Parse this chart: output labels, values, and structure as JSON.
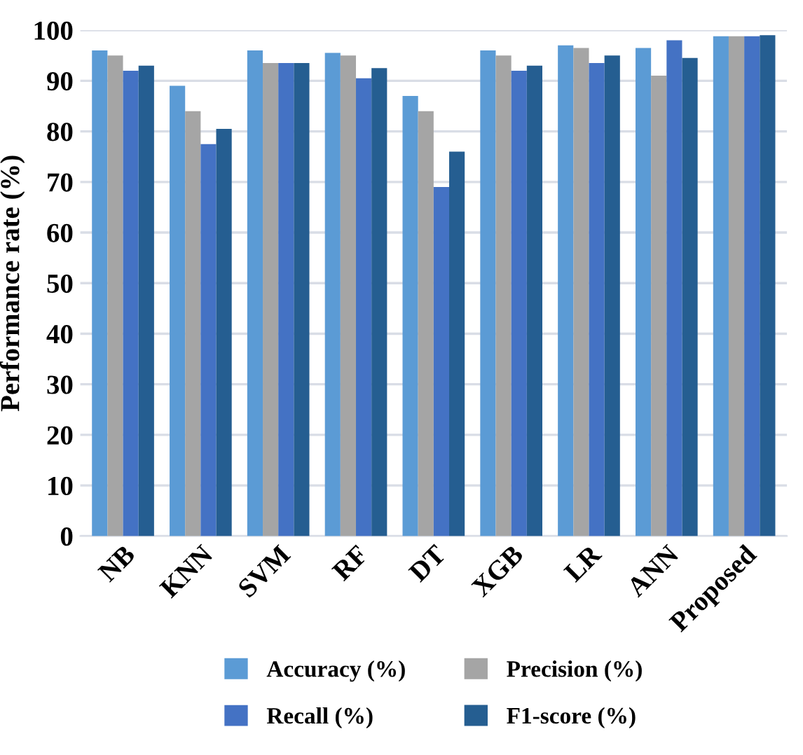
{
  "chart_data": {
    "type": "bar",
    "ylabel": "Performance rate (%)",
    "categories": [
      "NB",
      "KNN",
      "SVM",
      "RF",
      "DT",
      "XGB",
      "LR",
      "ANN",
      "Proposed"
    ],
    "series": [
      {
        "name": "Accuracy (%)",
        "color": "#5b9bd5",
        "values": [
          96,
          89,
          96,
          95.5,
          87,
          96,
          97,
          96.5,
          98.8
        ]
      },
      {
        "name": "Precision (%)",
        "color": "#a5a5a5",
        "values": [
          95,
          84,
          93.5,
          95,
          84,
          95,
          96.5,
          91,
          98.8
        ]
      },
      {
        "name": "Recall (%)",
        "color": "#4472c4",
        "values": [
          92,
          77.5,
          93.5,
          90.5,
          69,
          92,
          93.5,
          98,
          98.8
        ]
      },
      {
        "name": "F1-score (%)",
        "color": "#255e91",
        "values": [
          93,
          80.5,
          93.5,
          92.5,
          76,
          93,
          95,
          94.5,
          99
        ]
      }
    ],
    "ylim": [
      0,
      100
    ],
    "yticks": [
      0,
      10,
      20,
      30,
      40,
      50,
      60,
      70,
      80,
      90,
      100
    ],
    "grid": "y",
    "legend": "bottom"
  }
}
